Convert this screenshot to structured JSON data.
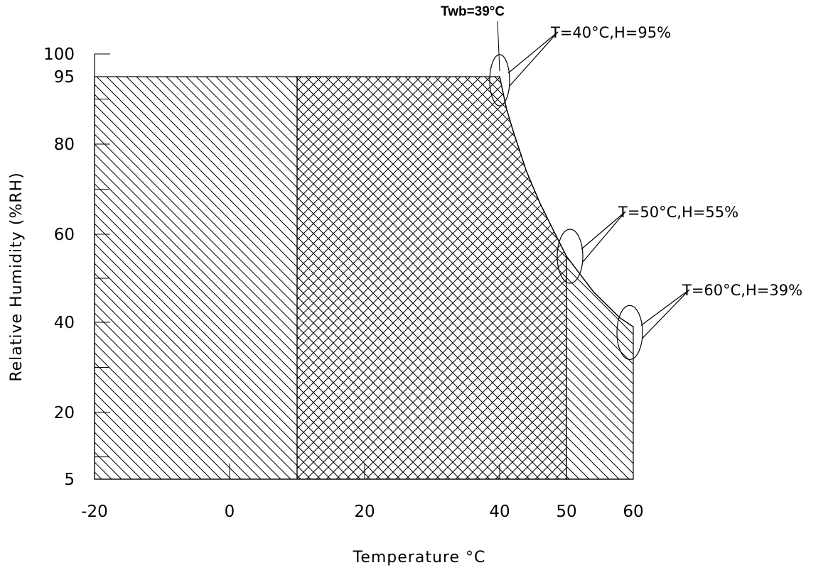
{
  "chart_data": {
    "type": "area",
    "xlabel": "Temperature °C",
    "ylabel": "Relative Humidity (%RH)",
    "xlim": [
      -20,
      60
    ],
    "ylim": [
      5,
      100
    ],
    "x_ticks": [
      -20,
      0,
      20,
      40,
      50,
      60
    ],
    "y_ticks": [
      5,
      20,
      40,
      60,
      80,
      95,
      100
    ],
    "regions": [
      {
        "name": "",
        "pattern": "single-hatch",
        "x_range": [
          -20,
          10
        ],
        "y_range": [
          5,
          95
        ]
      },
      {
        "name": "",
        "pattern": "cross-hatch",
        "x_range": [
          10,
          50
        ],
        "y_max_boundary": "Twb curve"
      },
      {
        "name": "",
        "pattern": "single-hatch",
        "x_range": [
          50,
          60
        ],
        "y_max_boundary": "Twb curve"
      }
    ],
    "boundary_curve": {
      "label": "Twb=39°C",
      "points": [
        {
          "x": 40,
          "y": 95
        },
        {
          "x": 41,
          "y": 88
        },
        {
          "x": 42,
          "y": 83
        },
        {
          "x": 44,
          "y": 74
        },
        {
          "x": 46,
          "y": 67
        },
        {
          "x": 48,
          "y": 61
        },
        {
          "x": 50,
          "y": 55
        },
        {
          "x": 52,
          "y": 51
        },
        {
          "x": 54,
          "y": 47
        },
        {
          "x": 56,
          "y": 44
        },
        {
          "x": 58,
          "y": 41
        },
        {
          "x": 60,
          "y": 39
        }
      ]
    },
    "annotations": [
      {
        "text": "T=40°C,H=95%",
        "x": 40,
        "y": 95
      },
      {
        "text": "T=50°C,H=55%",
        "x": 50,
        "y": 55
      },
      {
        "text": "T=60°C,H=39%",
        "x": 60,
        "y": 39
      }
    ],
    "grid": false
  }
}
